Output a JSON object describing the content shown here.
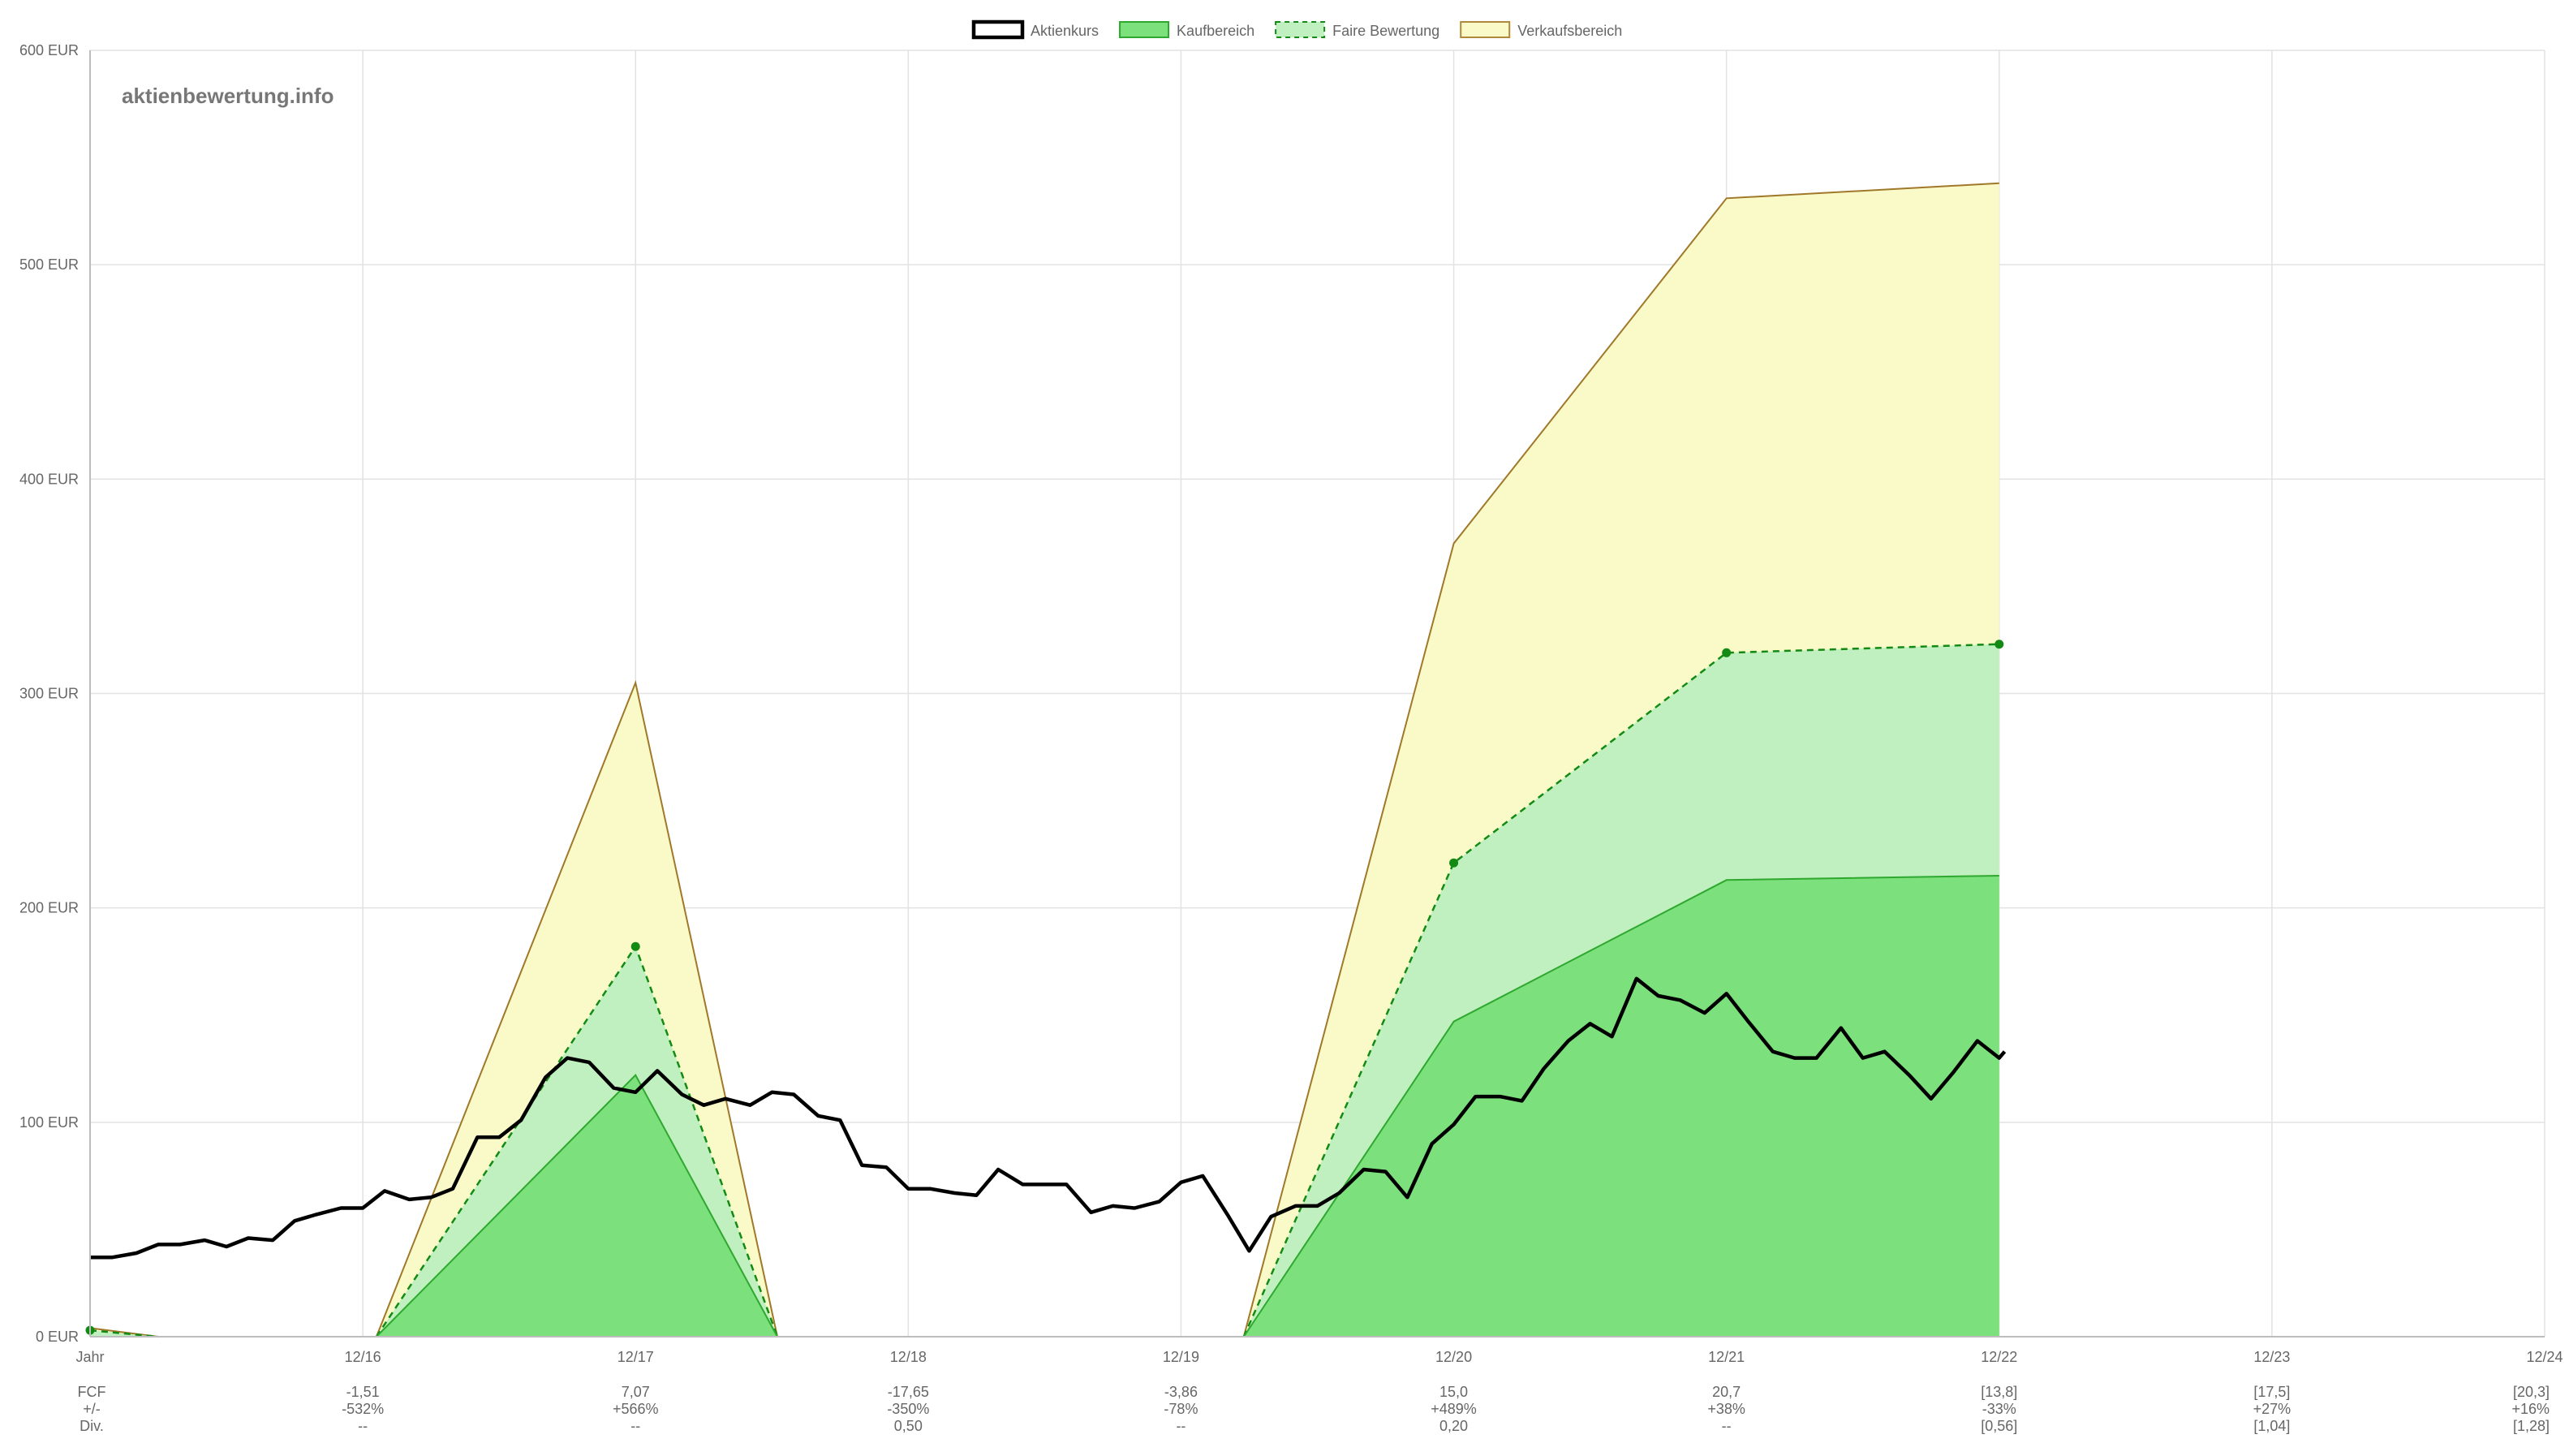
{
  "watermark": "aktienbewertung.info",
  "legend": [
    {
      "key": "aktienkurs",
      "label": "Aktienkurs",
      "fill": "#ffffff",
      "stroke": "#000000",
      "dashed": false
    },
    {
      "key": "kaufbereich",
      "label": "Kaufbereich",
      "fill": "#7ce07c",
      "stroke": "#2fa82f",
      "dashed": false
    },
    {
      "key": "faire",
      "label": "Faire Bewertung",
      "fill": "#c0f0c0",
      "stroke": "#138a13",
      "dashed": true
    },
    {
      "key": "verkauf",
      "label": "Verkaufsbereich",
      "fill": "#faf9c8",
      "stroke": "#b08a3a",
      "dashed": false
    }
  ],
  "colors": {
    "price": "#000000",
    "buy_fill": "#7ce07c",
    "buy_line": "#2fa82f",
    "fair_fill": "#c0f0c0",
    "fair_line": "#138a13",
    "sell_fill": "#faf9c8",
    "sell_line": "#a0782a",
    "grid": "#e2e2e2"
  },
  "chart_data": {
    "type": "line",
    "ylim": [
      0,
      600
    ],
    "y_ticks": [
      0,
      100,
      200,
      300,
      400,
      500,
      600
    ],
    "y_tick_labels": [
      "0 EUR",
      "100 EUR",
      "200 EUR",
      "300 EUR",
      "400 EUR",
      "500 EUR",
      "600 EUR"
    ],
    "x_range": [
      2015.0,
      2024.0
    ],
    "x_ticks": [
      2015.0,
      2016.0,
      2017.0,
      2018.0,
      2019.0,
      2020.0,
      2021.0,
      2022.0,
      2023.0,
      2024.0
    ],
    "x_tick_labels": [
      "Jahr",
      "12/16",
      "12/17",
      "12/18",
      "12/19",
      "12/20",
      "12/21",
      "12/22",
      "12/23",
      "12/24"
    ],
    "fair_points": [
      [
        2015.0,
        3
      ],
      [
        2017.0,
        182
      ],
      [
        2020.0,
        221
      ],
      [
        2021.0,
        319
      ],
      [
        2022.0,
        323
      ]
    ],
    "sell_zone": [
      [
        [
          2015.0,
          4
        ],
        [
          2015.25,
          0
        ]
      ],
      [
        [
          2016.05,
          0
        ],
        [
          2017.0,
          305
        ],
        [
          2017.52,
          0
        ]
      ],
      [
        [
          2019.23,
          0
        ],
        [
          2020.0,
          370
        ],
        [
          2021.0,
          531
        ],
        [
          2022.0,
          538
        ]
      ]
    ],
    "fair_zone": [
      [
        [
          2015.0,
          3
        ],
        [
          2015.25,
          0
        ]
      ],
      [
        [
          2016.05,
          0
        ],
        [
          2017.0,
          182
        ],
        [
          2017.52,
          0
        ]
      ],
      [
        [
          2019.23,
          0
        ],
        [
          2020.0,
          221
        ],
        [
          2021.0,
          319
        ],
        [
          2022.0,
          323
        ]
      ]
    ],
    "buy_zone": [
      [
        [
          2016.05,
          0
        ],
        [
          2017.0,
          122
        ],
        [
          2017.52,
          0
        ]
      ],
      [
        [
          2019.23,
          0
        ],
        [
          2020.0,
          147
        ],
        [
          2021.0,
          213
        ],
        [
          2022.0,
          215
        ]
      ]
    ],
    "price_series": [
      [
        2015.0,
        37
      ],
      [
        2015.08,
        37
      ],
      [
        2015.17,
        39
      ],
      [
        2015.25,
        43
      ],
      [
        2015.33,
        43
      ],
      [
        2015.42,
        45
      ],
      [
        2015.5,
        42
      ],
      [
        2015.58,
        46
      ],
      [
        2015.67,
        45
      ],
      [
        2015.75,
        54
      ],
      [
        2015.83,
        57
      ],
      [
        2015.92,
        60
      ],
      [
        2016.0,
        60
      ],
      [
        2016.08,
        68
      ],
      [
        2016.17,
        64
      ],
      [
        2016.25,
        65
      ],
      [
        2016.33,
        69
      ],
      [
        2016.42,
        93
      ],
      [
        2016.5,
        93
      ],
      [
        2016.58,
        101
      ],
      [
        2016.67,
        121
      ],
      [
        2016.75,
        130
      ],
      [
        2016.83,
        128
      ],
      [
        2016.92,
        116
      ],
      [
        2017.0,
        114
      ],
      [
        2017.08,
        124
      ],
      [
        2017.17,
        113
      ],
      [
        2017.25,
        108
      ],
      [
        2017.33,
        111
      ],
      [
        2017.42,
        108
      ],
      [
        2017.5,
        114
      ],
      [
        2017.58,
        113
      ],
      [
        2017.67,
        103
      ],
      [
        2017.75,
        101
      ],
      [
        2017.83,
        80
      ],
      [
        2017.92,
        79
      ],
      [
        2018.0,
        69
      ],
      [
        2018.08,
        69
      ],
      [
        2018.17,
        67
      ],
      [
        2018.25,
        66
      ],
      [
        2018.33,
        78
      ],
      [
        2018.42,
        71
      ],
      [
        2018.5,
        71
      ],
      [
        2018.58,
        71
      ],
      [
        2018.67,
        58
      ],
      [
        2018.75,
        61
      ],
      [
        2018.83,
        60
      ],
      [
        2018.92,
        63
      ],
      [
        2019.0,
        72
      ],
      [
        2019.08,
        75
      ],
      [
        2019.17,
        57
      ],
      [
        2019.25,
        40
      ],
      [
        2019.33,
        56
      ],
      [
        2019.42,
        61
      ],
      [
        2019.5,
        61
      ],
      [
        2019.58,
        67
      ],
      [
        2019.67,
        78
      ],
      [
        2019.75,
        77
      ],
      [
        2019.83,
        65
      ],
      [
        2019.92,
        90
      ],
      [
        2020.0,
        99
      ],
      [
        2020.08,
        112
      ],
      [
        2020.17,
        112
      ],
      [
        2020.25,
        110
      ],
      [
        2020.33,
        125
      ],
      [
        2020.42,
        138
      ],
      [
        2020.5,
        146
      ],
      [
        2020.58,
        140
      ],
      [
        2020.67,
        167
      ],
      [
        2020.75,
        159
      ],
      [
        2020.83,
        157
      ],
      [
        2020.92,
        151
      ],
      [
        2021.0,
        160
      ],
      [
        2021.08,
        147
      ],
      [
        2021.17,
        133
      ],
      [
        2021.25,
        130
      ],
      [
        2021.33,
        130
      ],
      [
        2021.42,
        144
      ],
      [
        2021.5,
        130
      ],
      [
        2021.58,
        133
      ],
      [
        2021.67,
        122
      ],
      [
        2021.75,
        111
      ],
      [
        2021.83,
        123
      ],
      [
        2021.92,
        138
      ],
      [
        2022.0,
        130
      ],
      [
        2022.02,
        133
      ]
    ]
  },
  "table": {
    "rows": [
      {
        "label": "FCF",
        "values": [
          "-1,51",
          "7,07",
          "-17,65",
          "-3,86",
          "15,0",
          "20,7",
          "[13,8]",
          "[17,5]",
          "[20,3]"
        ]
      },
      {
        "label": "+/-",
        "values": [
          "-532%",
          "+566%",
          "-350%",
          "-78%",
          "+489%",
          "+38%",
          "-33%",
          "+27%",
          "+16%"
        ]
      },
      {
        "label": "Div.",
        "values": [
          "--",
          "--",
          "0,50",
          "--",
          "0,20",
          "--",
          "[0,56]",
          "[1,04]",
          "[1,28]"
        ]
      }
    ]
  }
}
